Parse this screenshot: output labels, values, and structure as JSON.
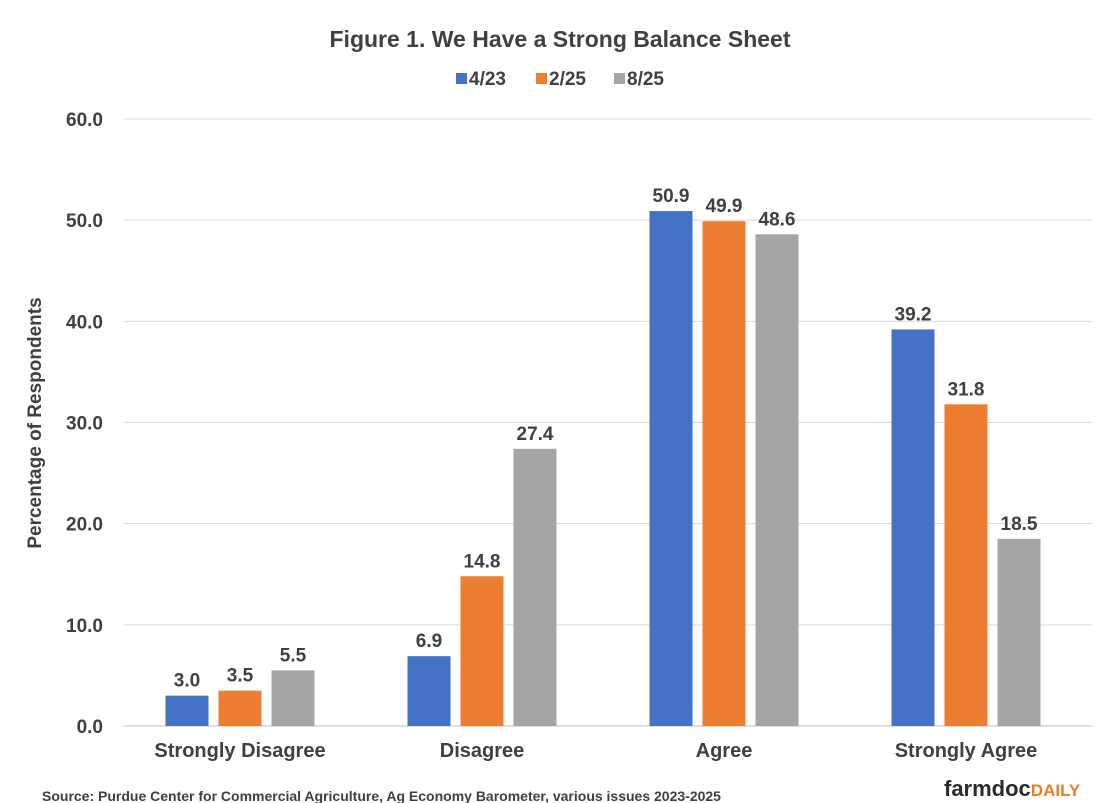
{
  "chart_data": {
    "type": "bar",
    "title": "Figure  1. We Have a Strong  Balance  Sheet",
    "ylabel": "Percentage of Respondents",
    "xlabel": "",
    "ylim": [
      0,
      60
    ],
    "yticks": [
      "0.0",
      "10.0",
      "20.0",
      "30.0",
      "40.0",
      "50.0",
      "60.0"
    ],
    "categories": [
      "Strongly Disagree",
      "Disagree",
      "Agree",
      "Strongly Agree"
    ],
    "series": [
      {
        "name": "4/23",
        "color": "#4472c4",
        "values": [
          3.0,
          6.9,
          50.9,
          39.2
        ],
        "labels": [
          "3.0",
          "6.9",
          "50.9",
          "39.2"
        ]
      },
      {
        "name": "2/25",
        "color": "#ed7d31",
        "values": [
          3.5,
          14.8,
          49.9,
          31.8
        ],
        "labels": [
          "3.5",
          "14.8",
          "49.9",
          "31.8"
        ]
      },
      {
        "name": "8/25",
        "color": "#a5a5a5",
        "values": [
          5.5,
          27.4,
          48.6,
          18.5
        ],
        "labels": [
          "5.5",
          "27.4",
          "48.6",
          "18.5"
        ]
      }
    ],
    "grid": true,
    "legend": "top-center"
  },
  "source": "Source:  Purdue Center for Commercial Agriculture, Ag  Economy  Barometer, various issues 2023-2025",
  "logo": {
    "part1": "farmdoc",
    "part2": "DAILY"
  }
}
